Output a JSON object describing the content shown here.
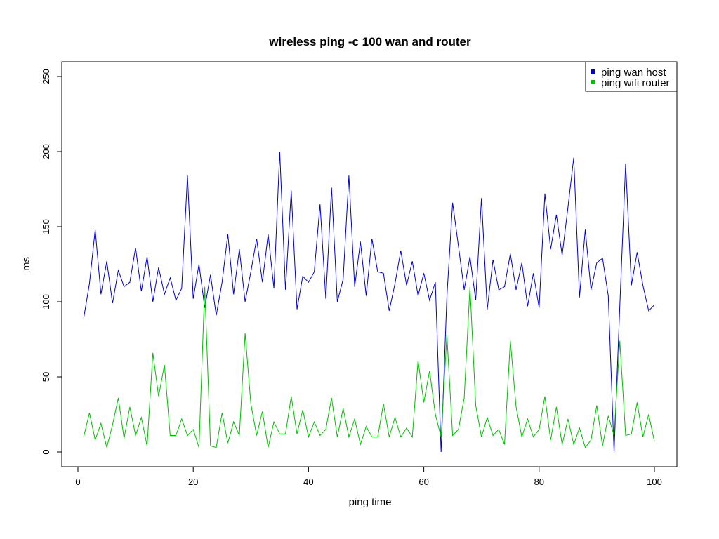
{
  "chart_data": {
    "type": "line",
    "title": "wireless ping -c 100 wan and router",
    "xlabel": "ping time",
    "ylabel": "ms",
    "xlim": [
      1,
      100
    ],
    "ylim": [
      0,
      260
    ],
    "xticks": [
      0,
      20,
      40,
      60,
      80,
      100
    ],
    "yticks": [
      0,
      50,
      100,
      150,
      200,
      250
    ],
    "grid": false,
    "legend_position": "top-right",
    "x": [
      1,
      2,
      3,
      4,
      5,
      6,
      7,
      8,
      9,
      10,
      11,
      12,
      13,
      14,
      15,
      16,
      17,
      18,
      19,
      20,
      21,
      22,
      23,
      24,
      25,
      26,
      27,
      28,
      29,
      30,
      31,
      32,
      33,
      34,
      35,
      36,
      37,
      38,
      39,
      40,
      41,
      42,
      43,
      44,
      45,
      46,
      47,
      48,
      49,
      50,
      51,
      52,
      53,
      54,
      55,
      56,
      57,
      58,
      59,
      60,
      61,
      62,
      63,
      64,
      65,
      66,
      67,
      68,
      69,
      70,
      71,
      72,
      73,
      74,
      75,
      76,
      77,
      78,
      79,
      80,
      81,
      82,
      83,
      84,
      85,
      86,
      87,
      88,
      89,
      90,
      91,
      92,
      93,
      94,
      95,
      96,
      97,
      98,
      99,
      100
    ],
    "series": [
      {
        "name": "ping wan host",
        "color": "#0000cd",
        "values": [
          89,
          112,
          148,
          105,
          127,
          99,
          121,
          110,
          113,
          136,
          107,
          130,
          100,
          123,
          105,
          116,
          101,
          109,
          184,
          102,
          125,
          96,
          118,
          91,
          113,
          145,
          105,
          135,
          100,
          120,
          142,
          113,
          145,
          109,
          200,
          108,
          174,
          95,
          117,
          113,
          120,
          165,
          102,
          176,
          100,
          115,
          184,
          110,
          140,
          104,
          142,
          120,
          119,
          94,
          112,
          134,
          111,
          127,
          104,
          119,
          101,
          113,
          0,
          103,
          166,
          137,
          108,
          130,
          101,
          169,
          95,
          128,
          108,
          110,
          132,
          108,
          126,
          97,
          119,
          96,
          172,
          135,
          158,
          131,
          163,
          196,
          103,
          148,
          108,
          126,
          129,
          104,
          0,
          97,
          192,
          111,
          133,
          111,
          94,
          98
        ]
      },
      {
        "name": "ping wifi router",
        "color": "#00c000",
        "values": [
          10,
          26,
          8,
          19,
          3,
          18,
          36,
          9,
          30,
          11,
          23,
          4,
          66,
          37,
          58,
          11,
          11,
          22,
          11,
          15,
          3,
          110,
          4,
          3,
          26,
          6,
          20,
          11,
          79,
          32,
          11,
          27,
          3,
          20,
          12,
          12,
          37,
          12,
          28,
          10,
          20,
          11,
          15,
          36,
          10,
          29,
          10,
          22,
          5,
          17,
          10,
          10,
          32,
          10,
          23,
          10,
          16,
          10,
          61,
          33,
          54,
          25,
          10,
          78,
          11,
          15,
          36,
          110,
          31,
          10,
          23,
          11,
          15,
          5,
          74,
          30,
          10,
          22,
          10,
          15,
          37,
          8,
          30,
          5,
          22,
          5,
          16,
          3,
          8,
          31,
          4,
          24,
          11,
          74,
          11,
          12,
          33,
          10,
          25,
          7
        ]
      }
    ]
  }
}
